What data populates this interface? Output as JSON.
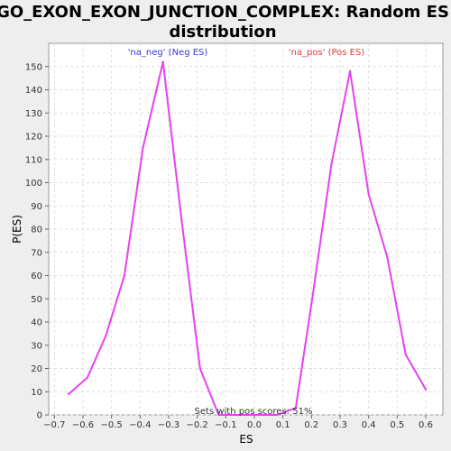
{
  "chart_data": {
    "type": "line",
    "title": "GO_EXON_EXON_JUNCTION_COMPLEX: Random ES distribution",
    "title_lines": [
      "GO_EXON_EXON_JUNCTION_COMPLEX: Random ES",
      "distribution"
    ],
    "xlabel": "ES",
    "ylabel": "P(ES)",
    "xlim": [
      -0.72,
      0.66
    ],
    "ylim": [
      0,
      160
    ],
    "xticks": [
      -0.7,
      -0.6,
      -0.5,
      -0.4,
      -0.3,
      -0.2,
      -0.1,
      0.0,
      0.1,
      0.2,
      0.3,
      0.4,
      0.5,
      0.6
    ],
    "xtick_labels": [
      "−0.7",
      "−0.6",
      "−0.5",
      "−0.4",
      "−0.3",
      "−0.2",
      "−0.1",
      "0.0",
      "0.1",
      "0.2",
      "0.3",
      "0.4",
      "0.5",
      "0.6"
    ],
    "yticks": [
      0,
      10,
      20,
      30,
      40,
      50,
      60,
      70,
      80,
      90,
      100,
      110,
      120,
      130,
      140,
      150
    ],
    "grid": true,
    "series": [
      {
        "x": [
          -0.65,
          -0.585,
          -0.52,
          -0.455,
          -0.39,
          -0.32,
          -0.255,
          -0.19,
          -0.125,
          -0.06,
          0.01,
          0.08,
          0.145,
          0.205,
          0.27,
          0.335,
          0.4,
          0.465,
          0.53,
          0.6
        ],
        "y": [
          9,
          16,
          34,
          60,
          115,
          152,
          84,
          20,
          0,
          0,
          0,
          0,
          3,
          52,
          108,
          148,
          95,
          68,
          26,
          11
        ]
      }
    ],
    "annotations": {
      "neg": "'na_neg' (Neg ES)",
      "pos": "'na_pos' (Pos ES)",
      "sets": "Sets with pos scores: 51%"
    },
    "colors": {
      "line": "#e642f0",
      "neg_label": "#3a3ae0",
      "pos_label": "#e03a3a",
      "plot_bg": "#ffffff",
      "page_bg": "#eeeeee",
      "grid": "#dddddd"
    }
  }
}
